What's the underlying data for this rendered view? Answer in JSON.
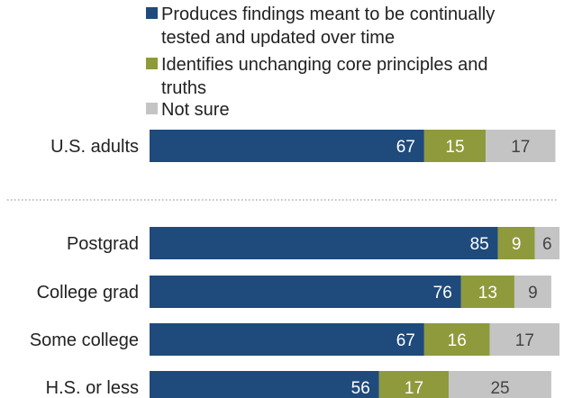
{
  "chart_data": {
    "type": "bar",
    "orientation": "horizontal",
    "stacked": true,
    "legend_placement": "top",
    "grid": false,
    "xlim": [
      0,
      100
    ],
    "categories": [
      "U.S. adults",
      "Postgrad",
      "College grad",
      "Some college",
      "H.S. or less"
    ],
    "series": [
      {
        "name": "Produces findings meant to be continually tested and updated over time",
        "legend_lines": [
          "Produces findings meant to be continually",
          "tested and updated over time"
        ],
        "color": "#1f4a7c",
        "label_color": "#ffffff",
        "values": [
          67,
          85,
          76,
          67,
          56
        ]
      },
      {
        "name": "Identifies unchanging core principles and truths",
        "legend_lines": [
          "Identifies unchanging core principles and",
          "truths"
        ],
        "color": "#8f9a3c",
        "label_color": "#ffffff",
        "values": [
          15,
          9,
          13,
          16,
          17
        ]
      },
      {
        "name": "Not sure",
        "legend_lines": [
          "Not sure"
        ],
        "color": "#c4c4c4",
        "label_color": "#444444",
        "values": [
          17,
          6,
          9,
          17,
          25
        ]
      }
    ]
  }
}
